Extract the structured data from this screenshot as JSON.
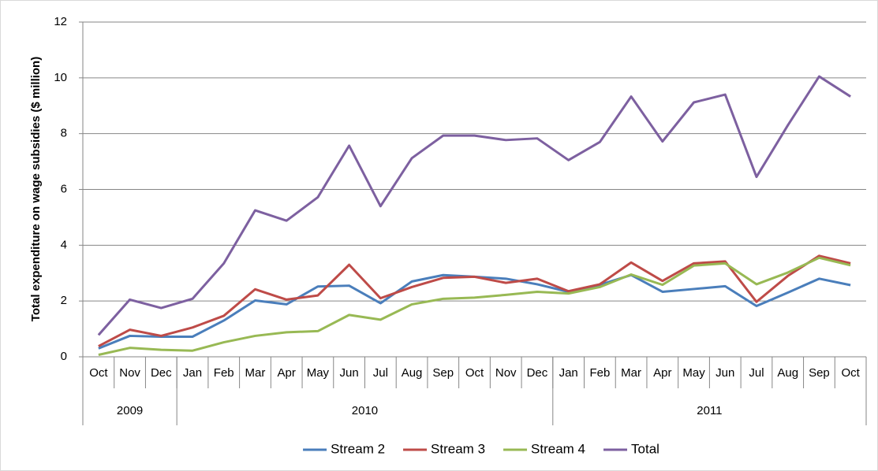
{
  "chart_data": {
    "type": "line",
    "y_label": "Total expenditure on wage subsidies ($ million)",
    "categories": [
      "Oct",
      "Nov",
      "Dec",
      "Jan",
      "Feb",
      "Mar",
      "Apr",
      "May",
      "Jun",
      "Jul",
      "Aug",
      "Sep",
      "Oct",
      "Nov",
      "Dec",
      "Jan",
      "Feb",
      "Mar",
      "Apr",
      "May",
      "Jun",
      "Jul",
      "Aug",
      "Sep",
      "Oct"
    ],
    "groups": [
      {
        "label": "2009",
        "size": 3
      },
      {
        "label": "2010",
        "size": 12
      },
      {
        "label": "2011",
        "size": 10
      }
    ],
    "series": [
      {
        "name": "Stream 2",
        "color": "#4a7ebb",
        "values": [
          0.3,
          0.75,
          0.72,
          0.72,
          1.3,
          2.02,
          1.88,
          2.52,
          2.55,
          1.92,
          2.7,
          2.93,
          2.87,
          2.8,
          2.6,
          2.33,
          2.58,
          2.93,
          2.33,
          2.43,
          2.53,
          1.82,
          2.3,
          2.8,
          2.57
        ]
      },
      {
        "name": "Stream 3",
        "color": "#be4b48",
        "values": [
          0.38,
          0.97,
          0.75,
          1.05,
          1.47,
          2.42,
          2.05,
          2.2,
          3.3,
          2.1,
          2.5,
          2.83,
          2.87,
          2.65,
          2.8,
          2.35,
          2.6,
          3.38,
          2.72,
          3.35,
          3.42,
          1.97,
          2.9,
          3.62,
          3.35
        ]
      },
      {
        "name": "Stream 4",
        "color": "#98b954",
        "values": [
          0.07,
          0.32,
          0.25,
          0.22,
          0.52,
          0.75,
          0.88,
          0.92,
          1.5,
          1.33,
          1.88,
          2.08,
          2.12,
          2.22,
          2.33,
          2.27,
          2.5,
          2.95,
          2.58,
          3.27,
          3.35,
          2.6,
          3.02,
          3.55,
          3.28
        ]
      },
      {
        "name": "Total",
        "color": "#7d60a0",
        "values": [
          0.78,
          2.05,
          1.75,
          2.08,
          3.35,
          5.25,
          4.88,
          5.72,
          7.57,
          5.4,
          7.12,
          7.93,
          7.93,
          7.77,
          7.83,
          7.05,
          7.7,
          9.33,
          7.72,
          9.12,
          9.4,
          6.45,
          8.3,
          10.05,
          9.33
        ]
      }
    ],
    "ylim": [
      0,
      12
    ],
    "yticks": [
      0,
      2,
      4,
      6,
      8,
      10,
      12
    ],
    "grid": true,
    "legend": "bottom"
  }
}
